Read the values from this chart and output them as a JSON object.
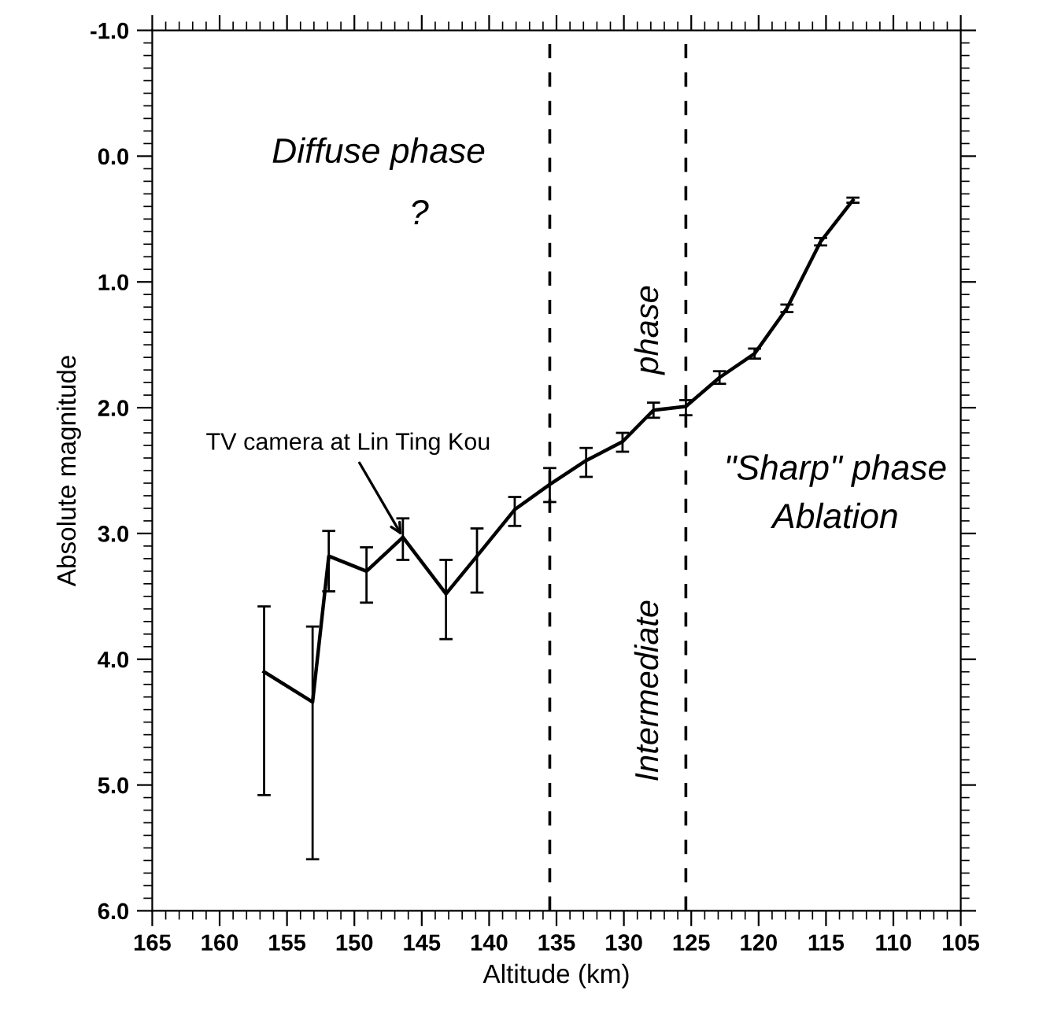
{
  "chart_data": {
    "type": "line",
    "xlabel": "Altitude (km)",
    "ylabel": "Absolute magnitude",
    "x": [
      156.7,
      153.1,
      151.9,
      149.1,
      146.4,
      143.2,
      140.9,
      138.1,
      135.5,
      132.8,
      130.1,
      127.8,
      125.4,
      122.9,
      120.3,
      117.9,
      115.4,
      113.0
    ],
    "series": [
      {
        "color": "#000000",
        "values": [
          4.1,
          4.34,
          3.18,
          3.3,
          3.03,
          3.48,
          3.18,
          2.81,
          2.61,
          2.42,
          2.27,
          2.02,
          1.99,
          1.76,
          1.57,
          1.21,
          0.68,
          0.35
        ],
        "errors": [
          [
            3.58,
            5.08
          ],
          [
            3.74,
            5.59
          ],
          [
            2.98,
            3.46
          ],
          [
            3.11,
            3.55
          ],
          [
            2.88,
            3.21
          ],
          [
            3.21,
            3.84
          ],
          [
            2.96,
            3.47
          ],
          [
            2.71,
            2.94
          ],
          [
            2.48,
            2.75
          ],
          [
            2.32,
            2.55
          ],
          [
            2.2,
            2.35
          ],
          [
            1.96,
            2.08
          ],
          [
            1.94,
            2.06
          ],
          [
            1.71,
            1.81
          ],
          [
            1.53,
            1.61
          ],
          [
            1.18,
            1.24
          ],
          [
            0.65,
            0.71
          ],
          [
            0.33,
            0.37
          ]
        ]
      }
    ],
    "xlim": [
      165,
      105
    ],
    "xticks": [
      165,
      160,
      155,
      150,
      145,
      140,
      135,
      130,
      125,
      120,
      115,
      110,
      105
    ],
    "ylim": [
      6.0,
      -1.0
    ],
    "yticks": [
      {
        "value": -1,
        "label": "-1.0"
      },
      {
        "value": 0,
        "label": "0.0"
      },
      {
        "value": 1,
        "label": "1.0"
      },
      {
        "value": 2,
        "label": "2.0"
      },
      {
        "value": 3,
        "label": "3.0"
      },
      {
        "value": 4,
        "label": "4.0"
      },
      {
        "value": 5,
        "label": "5.0"
      },
      {
        "value": 6,
        "label": "6.0"
      }
    ],
    "grid": false,
    "legend": false,
    "marker": "none",
    "line_style": "solid",
    "ref_lines": [
      {
        "axis": "x",
        "value": 135.5,
        "line_style": "dashed",
        "color": "#000000"
      },
      {
        "axis": "x",
        "value": 125.4,
        "line_style": "dashed",
        "color": "#000000"
      }
    ],
    "annotations": [
      {
        "text": "TV camera at Lin Ting Kou",
        "x": 146.4,
        "y": 3.03
      },
      "Diffuse phase",
      "?",
      "Intermediate",
      "phase",
      "\"Sharp\" phase",
      "Ablation"
    ]
  }
}
